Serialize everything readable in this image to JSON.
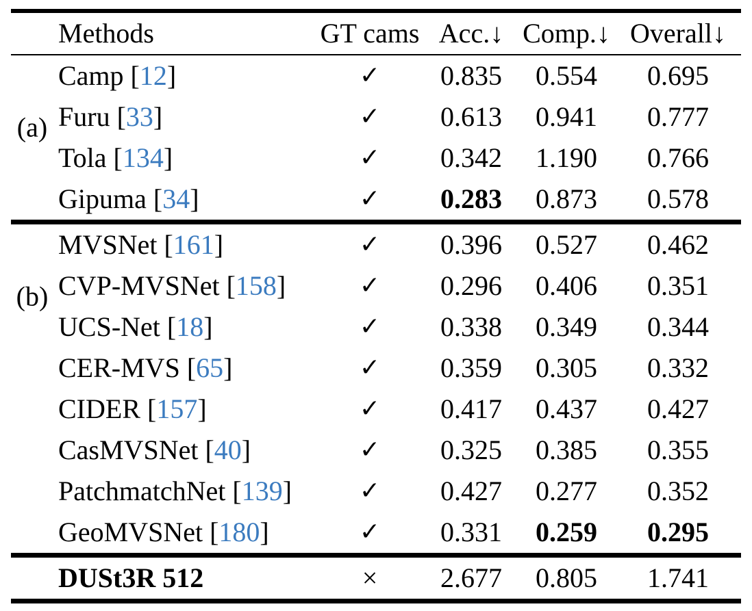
{
  "table": {
    "headers": {
      "methods": "Methods",
      "gt_cams": "GT cams",
      "acc": "Acc.↓",
      "comp": "Comp.↓",
      "overall": "Overall↓"
    },
    "symbols": {
      "check": "✓",
      "cross": "×"
    },
    "colors": {
      "citation_blue": "#3b7bbf",
      "text": "#000000",
      "background": "#ffffff"
    },
    "groups": [
      {
        "label": "(a)",
        "rows": [
          {
            "name": "Camp",
            "ref": "12",
            "gt": "check",
            "acc": "0.835",
            "comp": "0.554",
            "overall": "0.695",
            "bold": []
          },
          {
            "name": "Furu",
            "ref": "33",
            "gt": "check",
            "acc": "0.613",
            "comp": "0.941",
            "overall": "0.777",
            "bold": []
          },
          {
            "name": "Tola",
            "ref": "134",
            "gt": "check",
            "acc": "0.342",
            "comp": "1.190",
            "overall": "0.766",
            "bold": []
          },
          {
            "name": "Gipuma",
            "ref": "34",
            "gt": "check",
            "acc": "0.283",
            "comp": "0.873",
            "overall": "0.578",
            "bold": [
              "acc"
            ]
          }
        ]
      },
      {
        "label": "(b)",
        "rows": [
          {
            "name": "MVSNet",
            "ref": "161",
            "gt": "check",
            "acc": "0.396",
            "comp": "0.527",
            "overall": "0.462",
            "bold": []
          },
          {
            "name": "CVP-MVSNet",
            "ref": "158",
            "gt": "check",
            "acc": "0.296",
            "comp": "0.406",
            "overall": "0.351",
            "bold": []
          },
          {
            "name": "UCS-Net",
            "ref": "18",
            "gt": "check",
            "acc": "0.338",
            "comp": "0.349",
            "overall": "0.344",
            "bold": []
          },
          {
            "name": "CER-MVS",
            "ref": "65",
            "gt": "check",
            "acc": "0.359",
            "comp": "0.305",
            "overall": "0.332",
            "bold": []
          },
          {
            "name": "CIDER",
            "ref": "157",
            "gt": "check",
            "acc": "0.417",
            "comp": "0.437",
            "overall": "0.427",
            "bold": []
          },
          {
            "name": "CasMVSNet",
            "ref": "40",
            "gt": "check",
            "acc": "0.325",
            "comp": "0.385",
            "overall": "0.355",
            "bold": []
          },
          {
            "name": "PatchmatchNet",
            "ref": "139",
            "gt": "check",
            "acc": "0.427",
            "comp": "0.277",
            "overall": "0.352",
            "bold": []
          },
          {
            "name": "GeoMVSNet",
            "ref": "180",
            "gt": "check",
            "acc": "0.331",
            "comp": "0.259",
            "overall": "0.295",
            "bold": [
              "comp",
              "overall"
            ]
          }
        ]
      }
    ],
    "footer": {
      "name": "DUSt3R 512",
      "name_bold": true,
      "ref": "",
      "gt": "cross",
      "acc": "2.677",
      "comp": "0.805",
      "overall": "1.741",
      "bold": []
    }
  }
}
